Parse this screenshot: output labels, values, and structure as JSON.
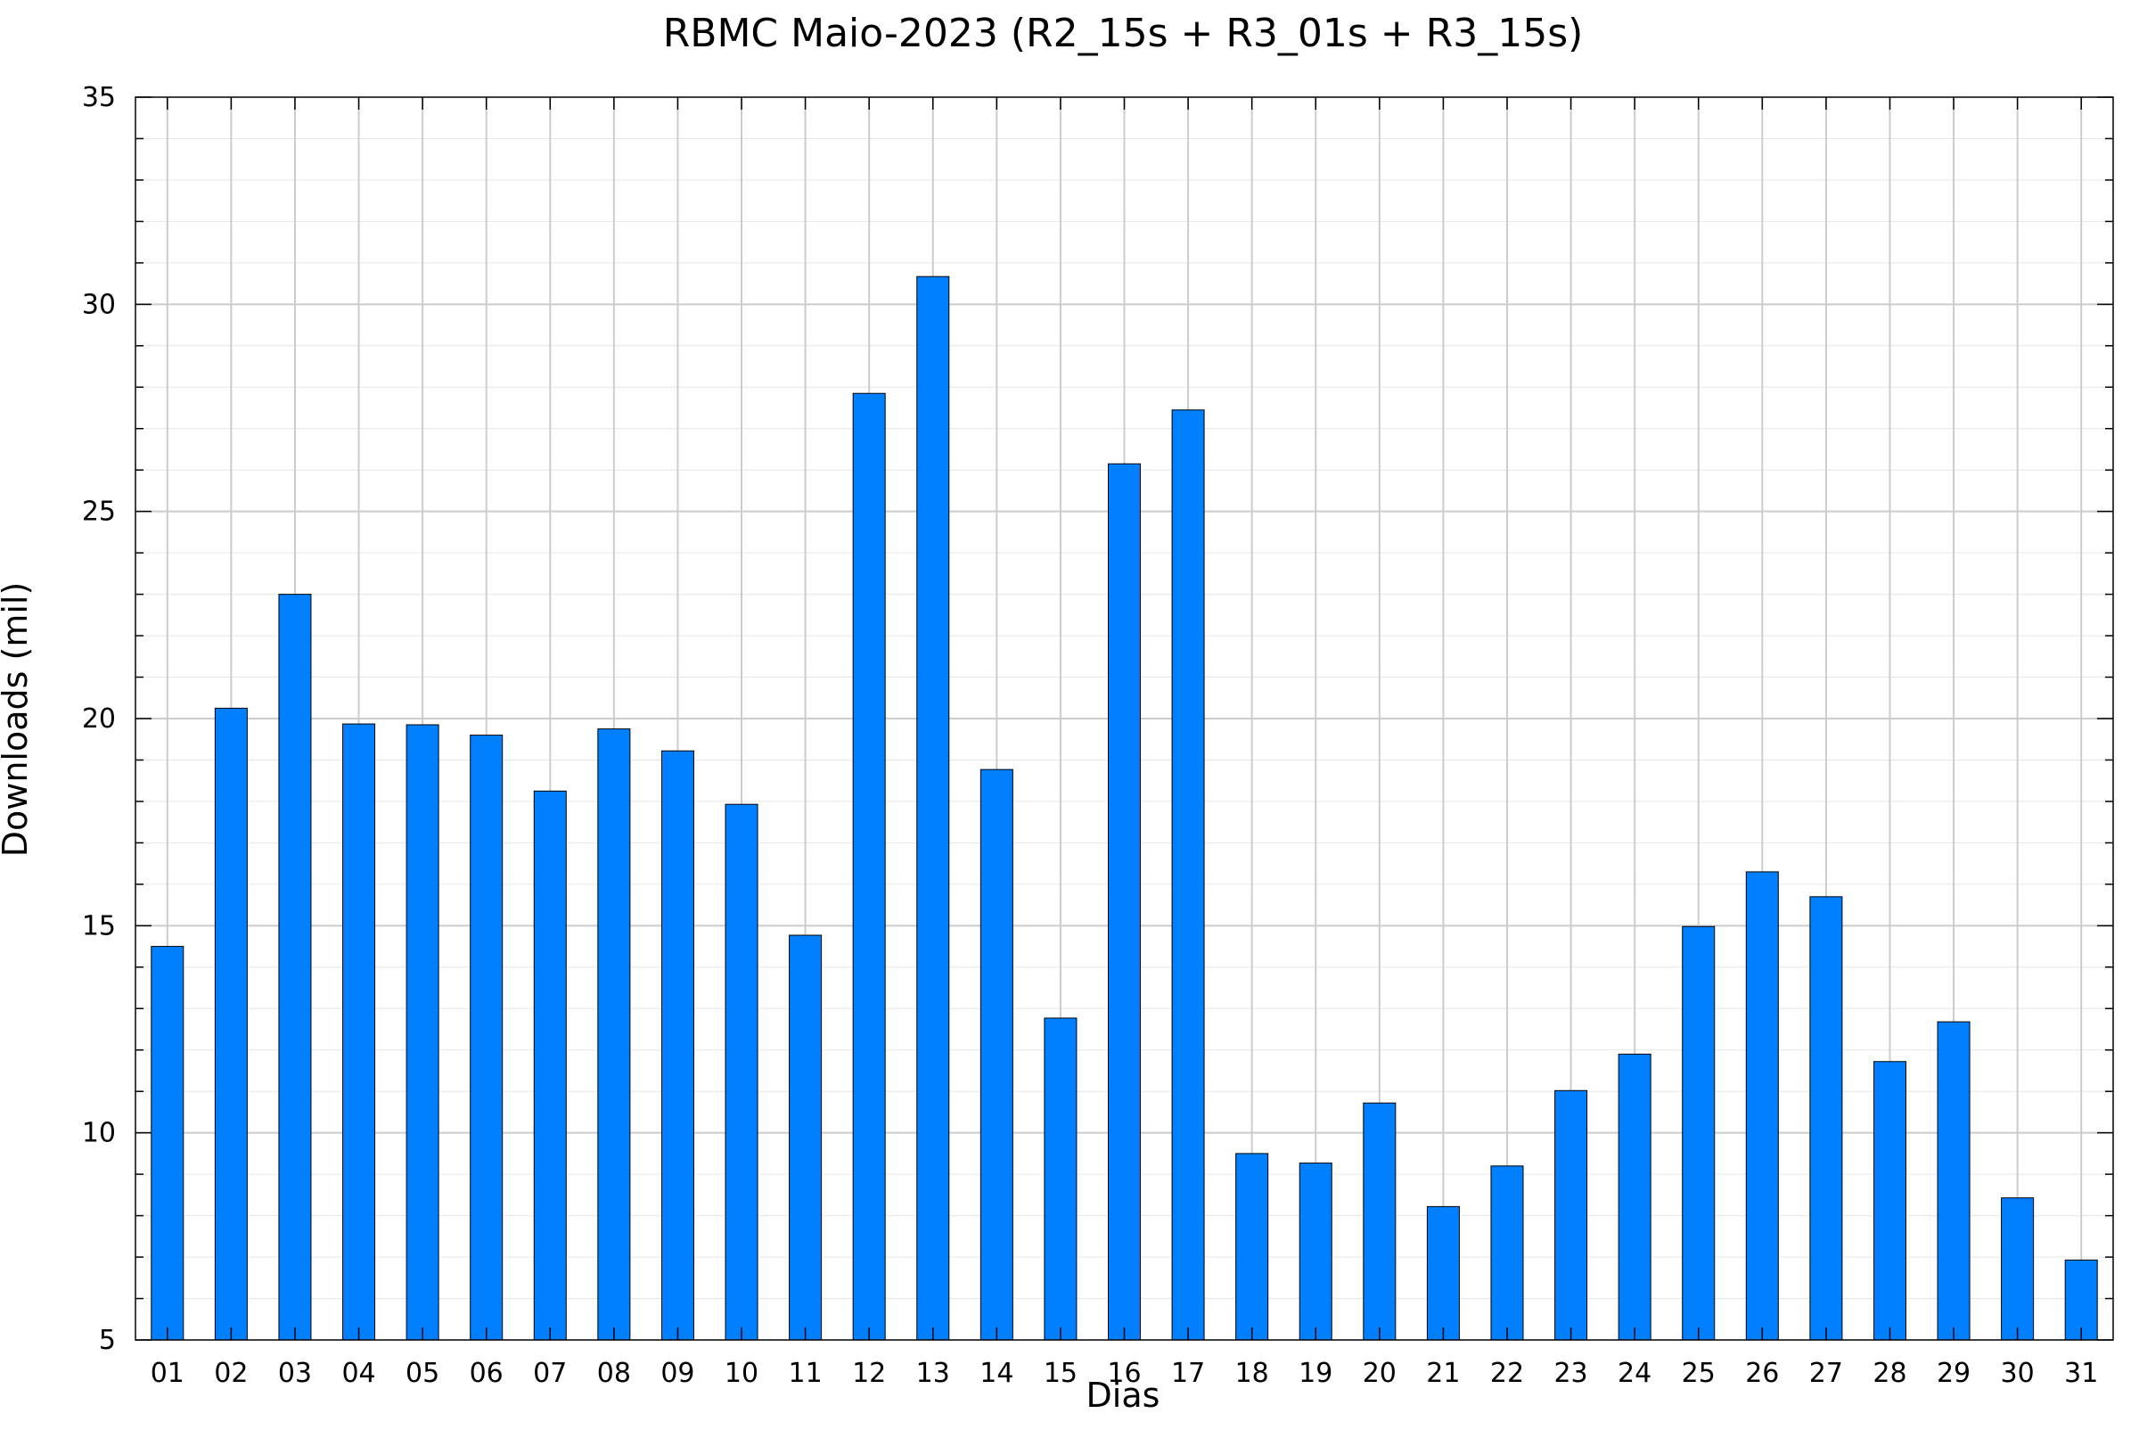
{
  "chart_data": {
    "type": "bar",
    "title": "RBMC Maio-2023 (R2_15s + R3_01s + R3_15s)",
    "xlabel": "Dias",
    "ylabel": "Downloads (mil)",
    "ylim": [
      5,
      35
    ],
    "yticks": [
      5,
      10,
      15,
      20,
      25,
      30,
      35
    ],
    "grid": true,
    "categories": [
      "01",
      "02",
      "03",
      "04",
      "05",
      "06",
      "07",
      "08",
      "09",
      "10",
      "11",
      "12",
      "13",
      "14",
      "15",
      "16",
      "17",
      "18",
      "19",
      "20",
      "21",
      "22",
      "23",
      "24",
      "25",
      "26",
      "27",
      "28",
      "29",
      "30",
      "31"
    ],
    "values": [
      14.5,
      20.25,
      23.0,
      19.87,
      19.85,
      19.6,
      18.25,
      19.75,
      19.22,
      17.93,
      14.77,
      27.85,
      30.67,
      18.77,
      12.77,
      26.15,
      27.45,
      9.5,
      9.27,
      10.72,
      8.22,
      9.2,
      11.02,
      11.9,
      14.98,
      16.3,
      15.7,
      11.72,
      12.68,
      8.43,
      6.93
    ],
    "colors": {
      "bar_fill": "#0080ff",
      "bar_stroke": "#000000",
      "grid_major": "#cccccc",
      "grid_minor": "#e6e6e6",
      "axis": "#000000"
    }
  }
}
